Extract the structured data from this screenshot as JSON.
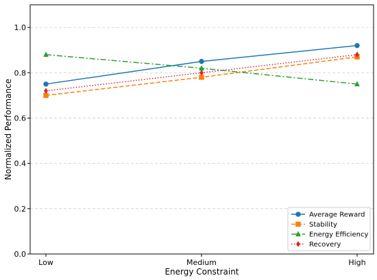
{
  "chart_data": {
    "type": "line",
    "xlabel": "Energy Constraint",
    "ylabel": "Normalized Performance",
    "categories": [
      "Low",
      "Medium",
      "High"
    ],
    "ylim": [
      0.0,
      1.1
    ],
    "yticks": [
      "0.0",
      "0.2",
      "0.4",
      "0.6",
      "0.8",
      "1.0"
    ],
    "grid": "horizontal dashed",
    "legend_position": "bottom-right",
    "series": [
      {
        "name": "Average Reward",
        "values": [
          0.75,
          0.85,
          0.92
        ],
        "color": "#1f77b4",
        "linestyle": "solid",
        "marker": "circle"
      },
      {
        "name": "Stability",
        "values": [
          0.7,
          0.78,
          0.87
        ],
        "color": "#ff7f0e",
        "linestyle": "dashed",
        "marker": "square"
      },
      {
        "name": "Energy Efficiency",
        "values": [
          0.88,
          0.82,
          0.75
        ],
        "color": "#2ca02c",
        "linestyle": "dashdot",
        "marker": "triangle"
      },
      {
        "name": "Recovery",
        "values": [
          0.72,
          0.8,
          0.88
        ],
        "color": "#d62728",
        "linestyle": "dotted",
        "marker": "diamond"
      }
    ]
  }
}
